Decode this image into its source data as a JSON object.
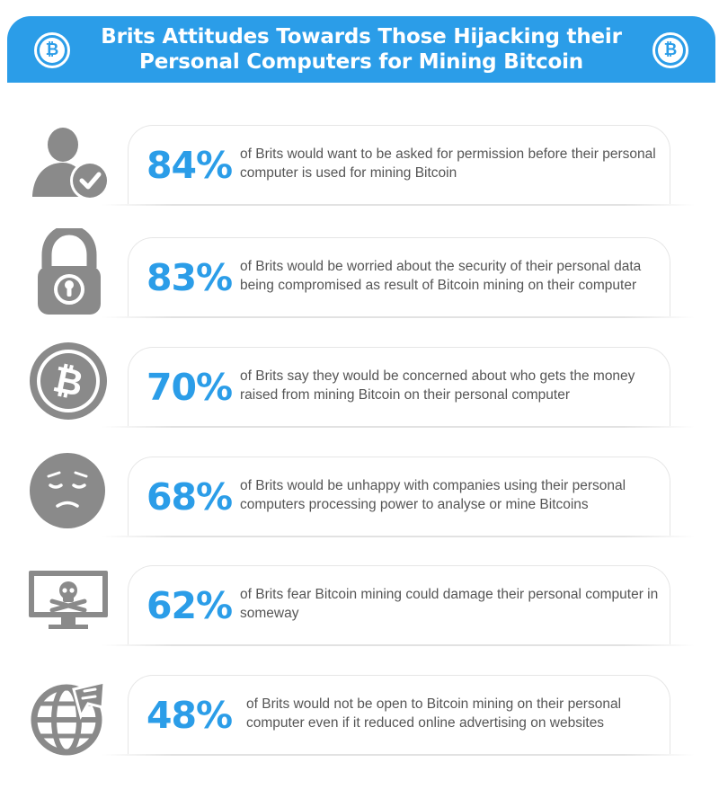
{
  "header": {
    "title": "Brits Attitudes Towards Those Hijacking their Personal Computers for Mining Bitcoin",
    "left_coin_symbol": "₿",
    "right_coin_symbol": "₿"
  },
  "colors": {
    "accent": "#2b9de8",
    "icon_gray": "#8a8a8a",
    "text": "#555555"
  },
  "stats": [
    {
      "icon": "user-check-icon",
      "percent": "84%",
      "text": "of Brits would want to be asked for permission before their personal computer is used for mining Bitcoin"
    },
    {
      "icon": "padlock-icon",
      "percent": "83%",
      "text": "of Brits would be worried about the security of their personal data being compromised as result of Bitcoin mining on their computer"
    },
    {
      "icon": "bitcoin-coin-icon",
      "percent": "70%",
      "text": "of Brits say they would be concerned about who gets the money raised from mining Bitcoin on their personal computer"
    },
    {
      "icon": "sad-face-icon",
      "percent": "68%",
      "text": "of Brits would be unhappy with companies using their personal computers processing power to analyse or mine Bitcoins"
    },
    {
      "icon": "monitor-skull-icon",
      "percent": "62%",
      "text": "of Brits fear Bitcoin mining could damage their personal computer in someway"
    },
    {
      "icon": "globe-ad-icon",
      "percent": "48%",
      "text": "of Brits would not be open to Bitcoin mining on their personal computer even if it reduced online advertising on websites"
    }
  ]
}
